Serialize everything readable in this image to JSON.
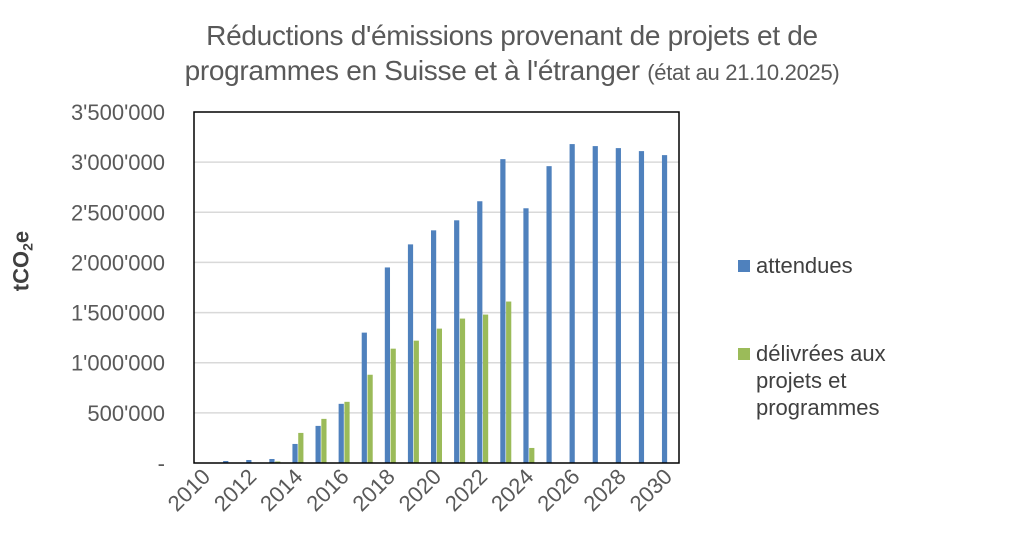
{
  "chart_data": {
    "type": "bar",
    "title": "Réductions d'émissions provenant de projets et de programmes en Suisse et à l'étranger",
    "subtitle": "(état au 21.10.2025)",
    "xlabel": "",
    "ylabel": "tCO2e",
    "ylim": [
      0,
      3500000
    ],
    "yticks": [
      0,
      500000,
      1000000,
      1500000,
      2000000,
      2500000,
      3000000,
      3500000
    ],
    "ytick_labels": [
      "-",
      "500'000",
      "1'000'000",
      "1'500'000",
      "2'000'000",
      "2'500'000",
      "3'000'000",
      "3'500'000"
    ],
    "categories": [
      "2010",
      "2011",
      "2012",
      "2013",
      "2014",
      "2015",
      "2016",
      "2017",
      "2018",
      "2019",
      "2020",
      "2021",
      "2022",
      "2023",
      "2024",
      "2025",
      "2026",
      "2027",
      "2028",
      "2029",
      "2030"
    ],
    "xtick_labels_shown": [
      "2010",
      "2012",
      "2014",
      "2016",
      "2018",
      "2020",
      "2022",
      "2024",
      "2026",
      "2028",
      "2030"
    ],
    "grid": true,
    "legend_position": "right",
    "series": [
      {
        "name": "attendues",
        "color": "#4f81bd",
        "values": [
          0,
          20000,
          30000,
          40000,
          190000,
          370000,
          590000,
          1300000,
          1950000,
          2180000,
          2320000,
          2420000,
          2610000,
          3030000,
          2540000,
          2960000,
          3180000,
          3160000,
          3140000,
          3110000,
          3070000
        ]
      },
      {
        "name": "délivrées aux projets et programmes",
        "color": "#9bbb59",
        "values": [
          0,
          0,
          5000,
          15000,
          300000,
          440000,
          610000,
          880000,
          1140000,
          1220000,
          1340000,
          1440000,
          1480000,
          1610000,
          150000,
          null,
          null,
          null,
          null,
          null,
          null
        ]
      }
    ]
  },
  "title": {
    "line1": "Réductions d'émissions provenant de projets et de",
    "line2_main": "programmes en Suisse et à l'étranger",
    "line2_small": "(état au 21.10.2025)"
  },
  "yaxis": {
    "title_main": "tCO",
    "title_sub": "2",
    "title_end": "e"
  },
  "legend": {
    "items": [
      {
        "lines": [
          "attendues"
        ],
        "color": "#4f81bd"
      },
      {
        "lines": [
          "délivrées aux",
          "projets et",
          "programmes"
        ],
        "color": "#9bbb59"
      }
    ]
  },
  "style": {
    "frame_color": "#000000",
    "grid_color": "#d9d9d9",
    "text_color": "#595959"
  }
}
